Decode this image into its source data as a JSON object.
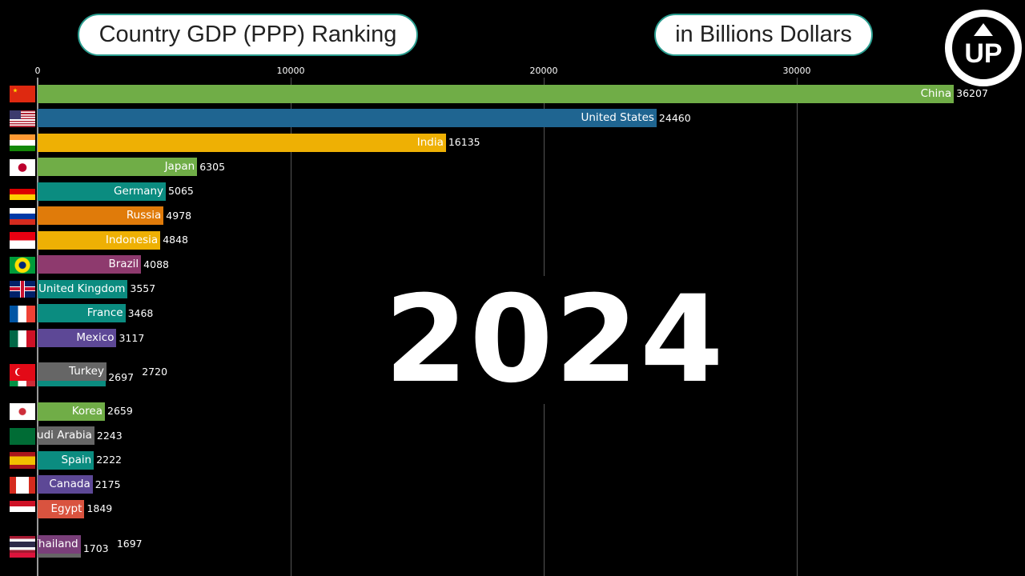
{
  "header": {
    "title": "Country GDP (PPP) Ranking",
    "unit": "in Billions Dollars",
    "logo": "UP"
  },
  "year": "2024",
  "chart_data": {
    "type": "bar",
    "orientation": "horizontal",
    "title": "Country GDP (PPP) Ranking",
    "unit": "in Billions Dollars",
    "xlim": [
      0,
      36207
    ],
    "xticks": [
      0,
      10000,
      20000,
      30000
    ],
    "grid": true,
    "year": "2024",
    "bars": [
      {
        "name": "China",
        "value": 36207,
        "rank": 1,
        "color": "#70ad47",
        "flag": "china-flag"
      },
      {
        "name": "United States",
        "value": 24460,
        "rank": 2,
        "color": "#1f6591",
        "flag": "usa-flag"
      },
      {
        "name": "India",
        "value": 16135,
        "rank": 3,
        "color": "#eeb004",
        "flag": "india-flag"
      },
      {
        "name": "Japan",
        "value": 6305,
        "rank": 4,
        "color": "#70ad47",
        "flag": "japan-flag"
      },
      {
        "name": "Germany",
        "value": 5065,
        "rank": 5,
        "color": "#0b8c80",
        "flag": "germany-flag"
      },
      {
        "name": "Russia",
        "value": 4978,
        "rank": 6,
        "color": "#e07b0a",
        "flag": "russia-flag"
      },
      {
        "name": "Indonesia",
        "value": 4848,
        "rank": 7,
        "color": "#eeb004",
        "flag": "indonesia-flag"
      },
      {
        "name": "Brazil",
        "value": 4088,
        "rank": 8,
        "color": "#8e3a6e",
        "flag": "brazil-flag"
      },
      {
        "name": "United Kingdom",
        "value": 3557,
        "rank": 9,
        "color": "#0b8c80",
        "flag": "uk-flag"
      },
      {
        "name": "France",
        "value": 3468,
        "rank": 10,
        "color": "#0b8c80",
        "flag": "france-flag"
      },
      {
        "name": "Mexico",
        "value": 3117,
        "rank": 11,
        "color": "#5d4896",
        "flag": "mexico-flag"
      },
      {
        "name": "",
        "value": 2697,
        "rank": 12.62,
        "color": "#0b8c80",
        "flag": "italy-flag"
      },
      {
        "name": "Turkey",
        "value": 2720,
        "rank": 12.39,
        "color": "#666666",
        "flag": "turkey-flag"
      },
      {
        "name": "Korea",
        "value": 2659,
        "rank": 14,
        "color": "#70ad47",
        "flag": "korea-flag"
      },
      {
        "name": "Saudi Arabia",
        "value": 2243,
        "rank": 15,
        "color": "#666666",
        "flag": "saudi-flag"
      },
      {
        "name": "Spain",
        "value": 2222,
        "rank": 16,
        "color": "#0b8c80",
        "flag": "spain-flag"
      },
      {
        "name": "Canada",
        "value": 2175,
        "rank": 17,
        "color": "#5d4896",
        "flag": "canada-flag"
      },
      {
        "name": "Egypt",
        "value": 1849,
        "rank": 18,
        "color": "#d9533f",
        "flag": "egypt-flag"
      },
      {
        "name": "",
        "value": 1703,
        "rank": 19.62,
        "color": "#666666",
        "flag": "unknown-flag"
      },
      {
        "name": "Thailand",
        "value": 1697,
        "rank": 19.43,
        "color": "#7a3f7a",
        "flag": "thailand-flag"
      }
    ]
  }
}
